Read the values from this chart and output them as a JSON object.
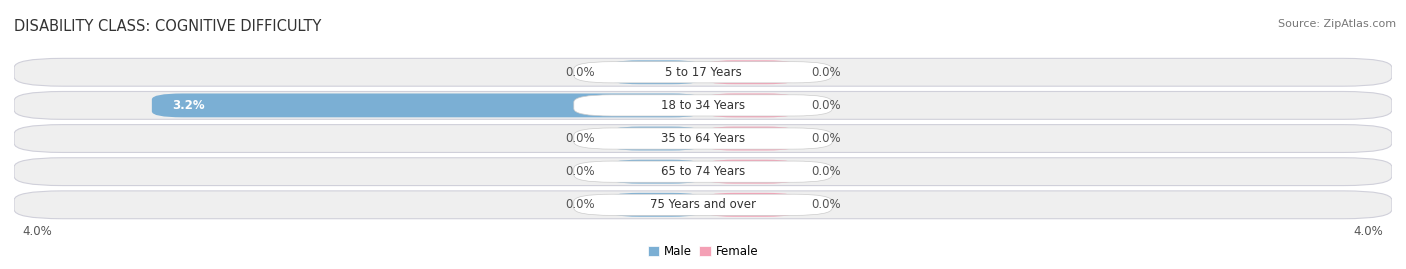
{
  "title": "DISABILITY CLASS: COGNITIVE DIFFICULTY",
  "source": "Source: ZipAtlas.com",
  "categories": [
    "5 to 17 Years",
    "18 to 34 Years",
    "35 to 64 Years",
    "65 to 74 Years",
    "75 Years and over"
  ],
  "male_values": [
    0.0,
    3.2,
    0.0,
    0.0,
    0.0
  ],
  "female_values": [
    0.0,
    0.0,
    0.0,
    0.0,
    0.0
  ],
  "male_color": "#7bafd4",
  "female_color": "#f4a0b5",
  "row_bg_color": "#efefef",
  "row_border_color": "#d8d8e0",
  "xlim": 4.0,
  "axis_label_left": "4.0%",
  "axis_label_right": "4.0%",
  "bar_height": 0.72,
  "min_tab_size": 0.55,
  "label_font_size": 8.5,
  "title_font_size": 10.5,
  "source_font_size": 8
}
